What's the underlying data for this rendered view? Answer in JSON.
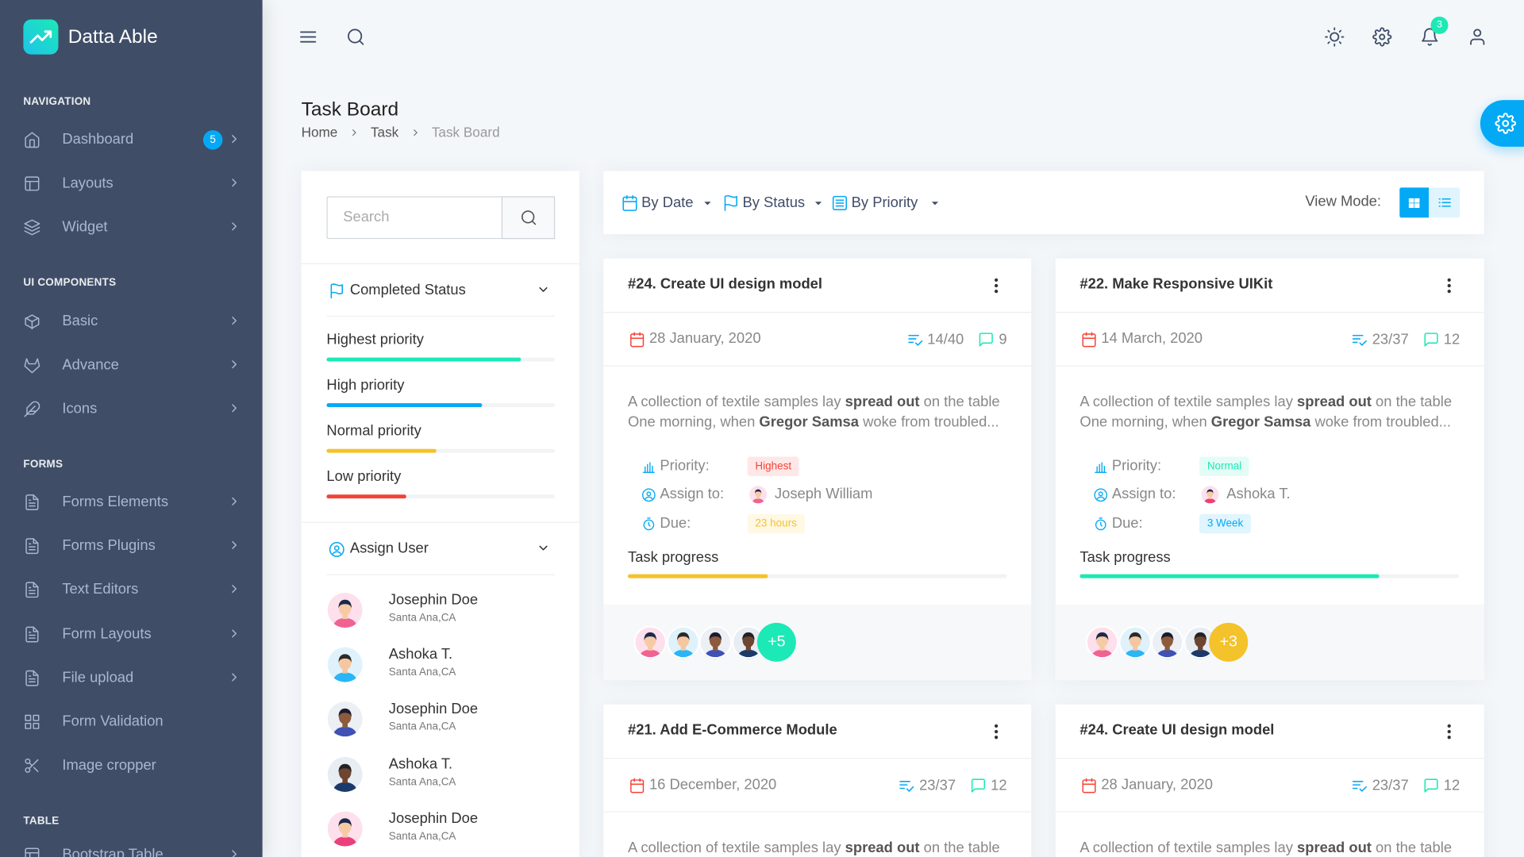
{
  "brand": "Datta Able",
  "sidebar": {
    "sections": [
      {
        "title": "NAVIGATION",
        "items": [
          {
            "label": "Dashboard",
            "badge": "5",
            "submenu": true
          },
          {
            "label": "Layouts",
            "submenu": true
          },
          {
            "label": "Widget",
            "submenu": true
          }
        ]
      },
      {
        "title": "UI COMPONENTS",
        "items": [
          {
            "label": "Basic",
            "submenu": true
          },
          {
            "label": "Advance",
            "submenu": true
          },
          {
            "label": "Icons",
            "submenu": true
          }
        ]
      },
      {
        "title": "FORMS",
        "items": [
          {
            "label": "Forms Elements",
            "submenu": true
          },
          {
            "label": "Forms Plugins",
            "submenu": true
          },
          {
            "label": "Text Editors",
            "submenu": true
          },
          {
            "label": "Form Layouts",
            "submenu": true
          },
          {
            "label": "File upload",
            "submenu": true
          },
          {
            "label": "Form Validation",
            "submenu": false
          },
          {
            "label": "Image cropper",
            "submenu": false
          }
        ]
      },
      {
        "title": "TABLE",
        "items": [
          {
            "label": "Bootstrap Table",
            "submenu": true
          }
        ]
      }
    ]
  },
  "header": {
    "notification_badge": "3"
  },
  "page": {
    "title": "Task Board",
    "breadcrumb": [
      "Home",
      "Task",
      "Task Board"
    ]
  },
  "filter_panel": {
    "search_placeholder": "Search",
    "completed_status": {
      "title": "Completed Status",
      "items": [
        {
          "label": "Highest priority",
          "progress": 85,
          "color": "#1de9b6"
        },
        {
          "label": "High priority",
          "progress": 68,
          "color": "#04a9f5"
        },
        {
          "label": "Normal priority",
          "progress": 48,
          "color": "#f4c22b"
        },
        {
          "label": "Low priority",
          "progress": 35,
          "color": "#f44236"
        }
      ]
    },
    "assign_user": {
      "title": "Assign User",
      "users": [
        {
          "name": "Josephin Doe",
          "location": "Santa Ana,CA"
        },
        {
          "name": "Ashoka T.",
          "location": "Santa Ana,CA"
        },
        {
          "name": "Josephin Doe",
          "location": "Santa Ana,CA"
        },
        {
          "name": "Ashoka T.",
          "location": "Santa Ana,CA"
        },
        {
          "name": "Josephin Doe",
          "location": "Santa Ana,CA"
        }
      ]
    }
  },
  "toolbar": {
    "filters": [
      "By Date",
      "By Status",
      "By Priority"
    ],
    "view_mode_label": "View Mode:"
  },
  "task_labels": {
    "priority": "Priority:",
    "assign_to": "Assign to:",
    "due": "Due:",
    "progress": "Task progress"
  },
  "tasks": [
    {
      "title": "#24. Create UI design model",
      "date": "28 January, 2020",
      "checklist": "14/40",
      "comments": "9",
      "description": [
        [
          {
            "text": "A collection of textile samples lay "
          },
          {
            "text": "spread out",
            "bold": true
          },
          {
            "text": " on the table"
          }
        ],
        [
          {
            "text": "One morning, when "
          },
          {
            "text": "Gregor Samsa",
            "bold": true
          },
          {
            "text": " woke from troubled..."
          }
        ]
      ],
      "priority": {
        "label": "Highest",
        "color": "#f44236"
      },
      "assign_to": "Joseph William",
      "due": {
        "label": "23 hours",
        "color": "#f4c22b"
      },
      "progress": 37,
      "progress_color": "#f4c22b",
      "extra_members": {
        "label": "+5",
        "color": "#1de9b6"
      }
    },
    {
      "title": "#22. Make Responsive UIKit",
      "date": "14 March, 2020",
      "checklist": "23/37",
      "comments": "12",
      "description": [
        [
          {
            "text": "A collection of textile samples lay "
          },
          {
            "text": "spread out",
            "bold": true
          },
          {
            "text": " on the table"
          }
        ],
        [
          {
            "text": "One morning, when "
          },
          {
            "text": "Gregor Samsa",
            "bold": true
          },
          {
            "text": " woke from troubled..."
          }
        ]
      ],
      "priority": {
        "label": "Normal",
        "color": "#1de9b6"
      },
      "assign_to": "Ashoka T.",
      "due": {
        "label": "3 Week",
        "color": "#04a9f5"
      },
      "progress": 79,
      "progress_color": "#1de9b6",
      "extra_members": {
        "label": "+3",
        "color": "#f4c22b"
      }
    },
    {
      "title": "#21. Add E-Commerce Module",
      "date": "16 December, 2020",
      "checklist": "23/37",
      "comments": "12",
      "description": [
        [
          {
            "text": "A collection of textile samples lay "
          },
          {
            "text": "spread out",
            "bold": true
          },
          {
            "text": " on the table"
          }
        ]
      ]
    },
    {
      "title": "#24. Create UI design model",
      "date": "28 January, 2020",
      "checklist": "23/37",
      "comments": "12",
      "description": [
        [
          {
            "text": "A collection of textile samples lay "
          },
          {
            "text": "spread out",
            "bold": true
          },
          {
            "text": " on the table"
          }
        ]
      ]
    }
  ]
}
